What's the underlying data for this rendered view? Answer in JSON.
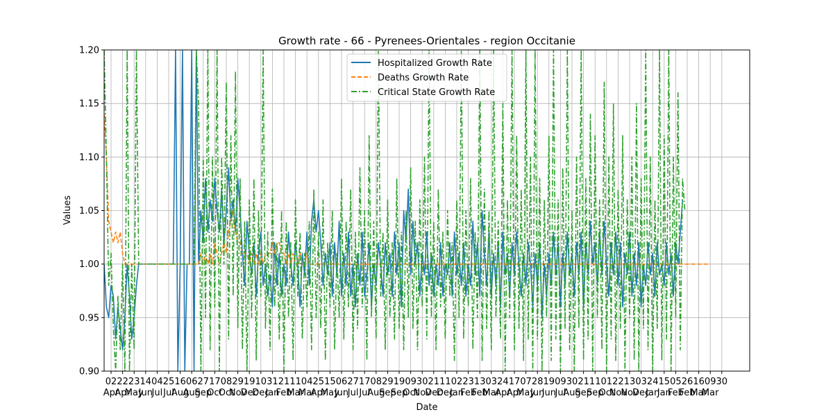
{
  "chart_data": {
    "type": "line",
    "title": "Growth rate - 66 - Pyrenees-Orientales - region Occitanie",
    "xlabel": "Date",
    "ylabel": "Values",
    "ylim": [
      0.9,
      1.2
    ],
    "y_ticks": [
      "0.90",
      "0.95",
      "1.00",
      "1.05",
      "1.10",
      "1.15",
      "1.20"
    ],
    "grid": true,
    "legend_position": "upper center",
    "x_ticks": [
      {
        "day": "02",
        "month": "Apr"
      },
      {
        "day": "22",
        "month": "Apr"
      },
      {
        "day": "23",
        "month": "May"
      },
      {
        "day": "14",
        "month": "Jun"
      },
      {
        "day": "04",
        "month": "Jul"
      },
      {
        "day": "25",
        "month": "Jul"
      },
      {
        "day": "16",
        "month": "Aug"
      },
      {
        "day": "06",
        "month": "Aug"
      },
      {
        "day": "27",
        "month": "Sep"
      },
      {
        "day": "17",
        "month": "Oct"
      },
      {
        "day": "08",
        "month": "Oct"
      },
      {
        "day": "29",
        "month": "Nov"
      },
      {
        "day": "19",
        "month": "Dec"
      },
      {
        "day": "10",
        "month": "Dec"
      },
      {
        "day": "31",
        "month": "Jan"
      },
      {
        "day": "21",
        "month": "Feb"
      },
      {
        "day": "11",
        "month": "Mar"
      },
      {
        "day": "04",
        "month": "Mar"
      },
      {
        "day": "25",
        "month": "Apr"
      },
      {
        "day": "15",
        "month": "May"
      },
      {
        "day": "06",
        "month": "Jun"
      },
      {
        "day": "27",
        "month": "Jul"
      },
      {
        "day": "17",
        "month": "Jul"
      },
      {
        "day": "08",
        "month": "Aug"
      },
      {
        "day": "29",
        "month": "Sep"
      },
      {
        "day": "19",
        "month": "Sep"
      },
      {
        "day": "09",
        "month": "Oct"
      },
      {
        "day": "30",
        "month": "Nov"
      },
      {
        "day": "21",
        "month": "Dec"
      },
      {
        "day": "11",
        "month": "Dec"
      },
      {
        "day": "02",
        "month": "Jan"
      },
      {
        "day": "23",
        "month": "Feb"
      },
      {
        "day": "13",
        "month": "Feb"
      },
      {
        "day": "03",
        "month": "Mar"
      },
      {
        "day": "24",
        "month": "Apr"
      },
      {
        "day": "17",
        "month": "Apr"
      },
      {
        "day": "07",
        "month": "May"
      },
      {
        "day": "28",
        "month": "Jun"
      },
      {
        "day": "19",
        "month": "Jun"
      },
      {
        "day": "09",
        "month": "Jul"
      },
      {
        "day": "30",
        "month": "Aug"
      },
      {
        "day": "21",
        "month": "Sep"
      },
      {
        "day": "11",
        "month": "Sep"
      },
      {
        "day": "01",
        "month": "Oct"
      },
      {
        "day": "22",
        "month": "Nov"
      },
      {
        "day": "13",
        "month": "Nov"
      },
      {
        "day": "03",
        "month": "Dec"
      },
      {
        "day": "24",
        "month": "Jan"
      },
      {
        "day": "15",
        "month": "Jan"
      },
      {
        "day": "05",
        "month": "Feb"
      },
      {
        "day": "26",
        "month": "Feb"
      },
      {
        "day": "16",
        "month": "Mar"
      },
      {
        "day": "09",
        "month": "Mar"
      },
      {
        "day": "30",
        "month": ""
      }
    ],
    "series": [
      {
        "name": "Hospitalized Growth Rate",
        "color": "#1f77b4",
        "style": "solid",
        "points_per_tick": 5,
        "values": [
          1.0,
          0.96,
          0.95,
          0.98,
          0.97,
          0.93,
          0.96,
          0.94,
          0.92,
          0.95,
          1.0,
          0.97,
          0.93,
          0.95,
          0.98,
          1.0,
          1.0,
          1.0,
          1.0,
          1.0,
          1.0,
          1.0,
          1.0,
          1.0,
          1.0,
          1.0,
          1.0,
          1.0,
          1.0,
          1.0,
          1.0,
          1.2,
          0.9,
          1.0,
          1.2,
          0.9,
          1.0,
          1.0,
          1.2,
          0.9,
          1.2,
          1.0,
          1.05,
          1.02,
          1.08,
          1.03,
          1.06,
          1.04,
          1.08,
          1.05,
          1.03,
          1.07,
          1.02,
          1.05,
          1.09,
          1.04,
          1.06,
          1.03,
          1.08,
          1.05,
          1.01,
          0.98,
          1.04,
          1.01,
          0.99,
          1.02,
          0.97,
          1.01,
          1.03,
          0.98,
          1.0,
          0.97,
          0.99,
          0.96,
          1.02,
          0.98,
          1.01,
          0.97,
          1.0,
          0.98,
          1.03,
          1.0,
          0.98,
          1.02,
          1.0,
          0.96,
          1.01,
          0.99,
          1.03,
          0.98,
          1.04,
          1.06,
          1.03,
          1.05,
          1.02,
          0.98,
          1.01,
          0.99,
          1.02,
          0.97,
          1.02,
          0.99,
          1.04,
          0.97,
          1.01,
          0.98,
          1.03,
          0.97,
          1.0,
          0.96,
          1.01,
          0.98,
          1.03,
          0.97,
          0.99,
          1.02,
          0.96,
          1.0,
          0.98,
          1.02,
          1.0,
          0.97,
          1.02,
          0.99,
          1.01,
          0.97,
          1.03,
          0.99,
          1.02,
          0.96,
          1.05,
          1.02,
          1.07,
          0.99,
          1.04,
          1.0,
          1.02,
          0.97,
          1.01,
          0.99,
          1.03,
          0.98,
          1.01,
          0.97,
          1.0,
          0.98,
          1.02,
          0.97,
          1.0,
          0.99,
          1.02,
          0.97,
          1.03,
          0.99,
          1.01,
          0.98,
          1.02,
          0.97,
          1.0,
          0.98,
          1.04,
          0.99,
          1.02,
          0.97,
          1.05,
          1.01,
          0.98,
          1.03,
          0.97,
          1.01,
          0.98,
          1.02,
          0.96,
          1.03,
          0.99,
          1.01,
          0.97,
          1.02,
          0.99,
          1.03,
          1.0,
          0.97,
          1.01,
          0.98,
          1.02,
          1.0,
          0.96,
          1.01,
          0.98,
          1.02,
          0.95,
          1.0,
          0.97,
          1.01,
          0.98,
          1.03,
          0.99,
          1.02,
          0.96,
          1.01,
          0.98,
          1.03,
          0.99,
          1.01,
          0.97,
          1.02,
          0.99,
          1.03,
          0.96,
          1.02,
          0.99,
          1.04,
          1.0,
          1.02,
          0.98,
          1.03,
          0.99,
          1.04,
          1.0,
          0.97,
          1.02,
          0.99,
          1.03,
          0.98,
          1.02,
          0.96,
          1.01,
          0.99,
          1.03,
          0.97,
          1.01,
          0.98,
          1.02,
          0.96,
          1.0,
          0.98,
          1.02,
          0.99,
          1.01,
          0.97,
          1.02,
          0.99,
          1.0,
          0.98,
          1.02,
          0.99,
          1.01,
          0.97,
          1.02,
          1.0,
          1.03,
          1.06
        ]
      },
      {
        "name": "Deaths Growth Rate",
        "color": "#ff7f0e",
        "style": "dashed",
        "points_per_tick": 5,
        "values": [
          1.14,
          1.1,
          1.04,
          1.03,
          1.02,
          1.03,
          1.02,
          1.03,
          1.01,
          1.0,
          1.0,
          1.0,
          1.0,
          1.0,
          1.0,
          1.0,
          1.0,
          1.0,
          1.0,
          1.0,
          1.0,
          1.0,
          1.0,
          1.0,
          1.0,
          1.0,
          1.0,
          1.0,
          1.0,
          1.0,
          1.0,
          1.0,
          1.0,
          1.0,
          1.0,
          1.0,
          1.0,
          1.0,
          1.0,
          1.0,
          1.0,
          1.0,
          1.01,
          1.0,
          1.01,
          1.0,
          1.01,
          1.0,
          1.02,
          1.01,
          1.0,
          1.01,
          1.02,
          1.01,
          1.03,
          1.04,
          1.05,
          1.03,
          1.02,
          1.02,
          1.01,
          1.01,
          1.01,
          1.0,
          1.01,
          1.0,
          1.01,
          1.0,
          1.01,
          1.0,
          1.01,
          1.01,
          1.01,
          1.02,
          1.01,
          1.02,
          1.02,
          1.01,
          1.01,
          1.0,
          1.01,
          1.0,
          1.01,
          1.0,
          1.0,
          1.01,
          1.0,
          1.0,
          1.01,
          1.0,
          1.0,
          1.0,
          1.0,
          1.0,
          1.0,
          1.0,
          1.0,
          1.0,
          1.0,
          1.0,
          1.0,
          1.0,
          1.0,
          1.0,
          1.0,
          1.0,
          1.0,
          1.0,
          1.0,
          1.0,
          1.0,
          1.0,
          1.0,
          1.0,
          1.0,
          1.0,
          1.0,
          1.0,
          1.0,
          1.0,
          1.0,
          1.0,
          1.0,
          1.0,
          1.0,
          1.0,
          1.0,
          1.0,
          1.0,
          1.0,
          1.0,
          1.0,
          1.0,
          1.0,
          1.0,
          1.0,
          1.0,
          1.0,
          1.0,
          1.0,
          1.0,
          1.0,
          1.0,
          1.0,
          1.0,
          1.0,
          1.0,
          1.0,
          1.0,
          1.0,
          1.0,
          1.0,
          1.0,
          1.0,
          1.0,
          1.0,
          1.0,
          1.0,
          1.0,
          1.0,
          1.0,
          1.0,
          1.0,
          1.0,
          1.0,
          1.0,
          1.0,
          1.0,
          1.0,
          1.0,
          1.0,
          1.0,
          1.0,
          1.0,
          1.0,
          1.0,
          1.0,
          1.0,
          1.0,
          1.0,
          1.0,
          1.0,
          1.0,
          1.0,
          1.0,
          1.0,
          1.0,
          1.0,
          1.0,
          1.0,
          1.0,
          1.0,
          1.0,
          1.0,
          1.0,
          1.0,
          1.0,
          1.0,
          1.0,
          1.0,
          1.0,
          1.0,
          1.0,
          1.0,
          1.0,
          1.0,
          1.0,
          1.0,
          1.0,
          1.0,
          1.0,
          1.0,
          1.0,
          1.0,
          1.0,
          1.0,
          1.0,
          1.0,
          1.0,
          1.0,
          1.0,
          1.0,
          1.0,
          1.0,
          1.0,
          1.0,
          1.0,
          1.0,
          1.0,
          1.0,
          1.0,
          1.0,
          1.0,
          1.0,
          1.0,
          1.0,
          1.0,
          1.0,
          1.0,
          1.0,
          1.0,
          1.0,
          1.0,
          1.0,
          1.0,
          1.0,
          1.0,
          1.0,
          1.0,
          1.0,
          1.0,
          1.0,
          1.0,
          1.0,
          1.0,
          1.0,
          1.0,
          1.0,
          1.0,
          1.0,
          1.0,
          1.0,
          1.0,
          1.0
        ]
      },
      {
        "name": "Critical State Growth Rate",
        "color": "#2ca02c",
        "style": "dashdot",
        "points_per_tick": 5,
        "values": [
          1.2,
          1.1,
          0.98,
          1.01,
          0.94,
          0.9,
          0.97,
          0.92,
          1.0,
          0.9,
          1.2,
          0.9,
          1.0,
          0.92,
          1.2,
          1.0,
          1.0,
          1.0,
          1.0,
          1.0,
          1.0,
          1.0,
          1.0,
          1.0,
          1.0,
          1.0,
          1.0,
          1.0,
          1.0,
          1.0,
          1.0,
          1.0,
          1.0,
          1.0,
          1.0,
          1.0,
          1.0,
          1.0,
          1.0,
          1.0,
          1.2,
          1.15,
          0.9,
          1.1,
          0.95,
          1.2,
          0.92,
          1.1,
          0.96,
          1.2,
          0.9,
          1.1,
          1.0,
          1.17,
          0.93,
          1.12,
          0.97,
          1.18,
          0.94,
          1.08,
          0.92,
          1.04,
          0.9,
          1.06,
          0.95,
          1.08,
          0.91,
          1.05,
          0.97,
          1.2,
          0.94,
          1.03,
          0.92,
          1.07,
          0.96,
          1.02,
          0.93,
          1.05,
          0.9,
          1.04,
          0.95,
          1.02,
          0.91,
          1.06,
          0.97,
          1.03,
          0.93,
          1.01,
          0.96,
          1.04,
          0.92,
          1.07,
          0.95,
          1.03,
          0.94,
          1.06,
          0.91,
          1.02,
          0.96,
          1.05,
          0.92,
          1.01,
          0.95,
          1.08,
          0.93,
          1.04,
          0.96,
          1.07,
          0.92,
          1.03,
          0.94,
          1.09,
          0.96,
          1.05,
          0.91,
          1.12,
          0.95,
          1.04,
          0.93,
          1.2,
          0.97,
          1.03,
          0.92,
          1.06,
          0.95,
          1.02,
          0.93,
          1.08,
          0.94,
          1.03,
          0.92,
          1.05,
          0.95,
          1.09,
          0.94,
          1.04,
          0.92,
          1.06,
          0.96,
          1.1,
          0.93,
          1.2,
          0.95,
          1.04,
          0.92,
          1.07,
          0.96,
          1.03,
          0.93,
          1.05,
          0.97,
          1.02,
          0.91,
          1.06,
          0.95,
          1.2,
          0.93,
          1.05,
          0.96,
          1.08,
          0.92,
          1.03,
          0.95,
          1.2,
          0.91,
          1.07,
          0.94,
          1.05,
          0.92,
          1.2,
          0.95,
          1.04,
          0.93,
          1.15,
          0.9,
          1.06,
          0.95,
          1.2,
          0.92,
          1.12,
          0.94,
          1.07,
          0.91,
          1.2,
          0.93,
          1.1,
          0.9,
          1.2,
          0.93,
          1.08,
          0.9,
          1.06,
          0.95,
          1.12,
          0.91,
          1.2,
          0.93,
          1.06,
          0.9,
          1.09,
          0.94,
          1.2,
          0.92,
          1.05,
          0.9,
          1.1,
          0.94,
          1.2,
          0.91,
          1.08,
          0.93,
          1.14,
          0.9,
          1.12,
          0.95,
          1.06,
          0.92,
          1.17,
          0.9,
          1.1,
          0.93,
          1.15,
          0.91,
          1.07,
          0.94,
          1.12,
          0.9,
          1.06,
          0.95,
          1.1,
          0.91,
          1.15,
          0.9,
          1.08,
          0.94,
          1.2,
          0.92,
          1.1,
          0.9,
          1.06,
          0.94,
          1.2,
          0.91,
          1.12,
          0.93,
          1.2,
          0.9,
          1.1,
          0.95,
          1.16,
          0.92,
          1.08,
          1.05
        ]
      }
    ]
  }
}
